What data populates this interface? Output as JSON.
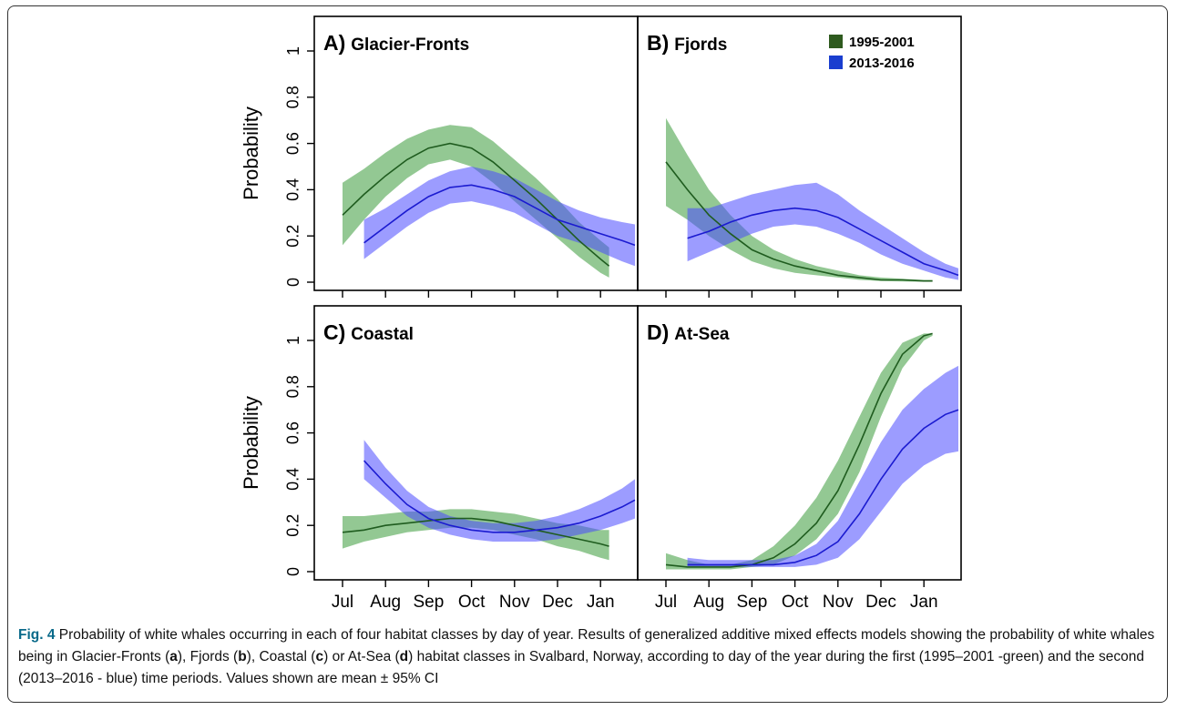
{
  "figure": {
    "caption_label": "Fig. 4",
    "caption_title": " Probability of white whales occurring in each of four habitat classes by day of year. Results of generalized additive mixed effects models showing the probability of white whales being in Glacier-Fronts (",
    "caption_parts": [
      {
        "text": "a",
        "bold": true
      },
      {
        "text": "), Fjords (",
        "bold": false
      },
      {
        "text": "b",
        "bold": true
      },
      {
        "text": "), Coastal (",
        "bold": false
      },
      {
        "text": "c",
        "bold": true
      },
      {
        "text": ") or At-Sea (",
        "bold": false
      },
      {
        "text": "d",
        "bold": true
      },
      {
        "text": ") habitat classes in Svalbard, Norway, according to day of the year during the first (1995–2001 -green) and the second (2013–2016 - blue) time periods. Values shown are mean ± 95% CI",
        "bold": false
      }
    ]
  },
  "colors": {
    "green_line": "#1f5c1f",
    "green_band": "#3a9a3a",
    "blue_line": "#1b1bd0",
    "blue_band": "#4a4aff",
    "legend_green": "#2e5a1e",
    "legend_blue": "#1a3ecf"
  },
  "chart_data": [
    {
      "type": "line",
      "panel": "A) Glacier-Fronts",
      "title": "A) Glacier-Fronts",
      "ylabel": "Probability",
      "ylim": [
        0,
        1
      ],
      "yticks": [
        "0",
        "0.2",
        "0.4",
        "0.6",
        "0.8",
        "1"
      ],
      "x_ticks": [
        "Jul",
        "Aug",
        "Sep",
        "Oct",
        "Nov",
        "Dec",
        "Jan"
      ],
      "x_tick_labels_shown": false,
      "series": [
        {
          "name": "1995-2001",
          "x": [
            0,
            0.5,
            1,
            1.5,
            2,
            2.5,
            3,
            3.5,
            4,
            4.5,
            5,
            5.5,
            6,
            6.2
          ],
          "mean": [
            0.29,
            0.38,
            0.46,
            0.53,
            0.58,
            0.6,
            0.58,
            0.52,
            0.44,
            0.36,
            0.27,
            0.18,
            0.1,
            0.07
          ],
          "lower": [
            0.16,
            0.27,
            0.37,
            0.45,
            0.51,
            0.53,
            0.5,
            0.43,
            0.35,
            0.27,
            0.19,
            0.11,
            0.04,
            0.02
          ],
          "upper": [
            0.43,
            0.49,
            0.56,
            0.62,
            0.66,
            0.68,
            0.67,
            0.61,
            0.53,
            0.45,
            0.36,
            0.26,
            0.18,
            0.15
          ]
        },
        {
          "name": "2013-2016",
          "x": [
            0.5,
            1,
            1.5,
            2,
            2.5,
            3,
            3.5,
            4,
            4.5,
            5,
            5.5,
            6,
            6.5,
            6.8
          ],
          "mean": [
            0.17,
            0.24,
            0.31,
            0.37,
            0.41,
            0.42,
            0.4,
            0.37,
            0.32,
            0.27,
            0.24,
            0.21,
            0.18,
            0.16
          ],
          "lower": [
            0.1,
            0.17,
            0.24,
            0.3,
            0.34,
            0.35,
            0.33,
            0.3,
            0.25,
            0.2,
            0.17,
            0.13,
            0.09,
            0.07
          ],
          "upper": [
            0.27,
            0.32,
            0.38,
            0.44,
            0.48,
            0.5,
            0.48,
            0.45,
            0.4,
            0.35,
            0.31,
            0.28,
            0.26,
            0.25
          ]
        }
      ]
    },
    {
      "type": "line",
      "panel": "B) Fjords",
      "title": "B) Fjords",
      "ylim": [
        0,
        1
      ],
      "x_ticks": [
        "Jul",
        "Aug",
        "Sep",
        "Oct",
        "Nov",
        "Dec",
        "Jan"
      ],
      "x_tick_labels_shown": false,
      "legend": [
        "1995-2001",
        "2013-2016"
      ],
      "legend_position": "top-right",
      "series": [
        {
          "name": "1995-2001",
          "x": [
            0,
            0.5,
            1,
            1.5,
            2,
            2.5,
            3,
            3.5,
            4,
            4.5,
            5,
            5.5,
            6,
            6.2
          ],
          "mean": [
            0.52,
            0.4,
            0.29,
            0.21,
            0.14,
            0.1,
            0.07,
            0.05,
            0.03,
            0.02,
            0.01,
            0.01,
            0.005,
            0.005
          ],
          "lower": [
            0.33,
            0.27,
            0.2,
            0.14,
            0.09,
            0.06,
            0.04,
            0.03,
            0.02,
            0.01,
            0.005,
            0.003,
            0.002,
            0.002
          ],
          "upper": [
            0.71,
            0.55,
            0.4,
            0.29,
            0.2,
            0.14,
            0.1,
            0.07,
            0.05,
            0.03,
            0.02,
            0.015,
            0.01,
            0.01
          ]
        },
        {
          "name": "2013-2016",
          "x": [
            0.5,
            1,
            1.5,
            2,
            2.5,
            3,
            3.5,
            4,
            4.5,
            5,
            5.5,
            6,
            6.5,
            6.8
          ],
          "mean": [
            0.19,
            0.22,
            0.26,
            0.29,
            0.31,
            0.32,
            0.31,
            0.28,
            0.23,
            0.18,
            0.13,
            0.08,
            0.05,
            0.03
          ],
          "lower": [
            0.09,
            0.13,
            0.17,
            0.21,
            0.24,
            0.25,
            0.24,
            0.21,
            0.17,
            0.12,
            0.08,
            0.05,
            0.02,
            0.01
          ],
          "upper": [
            0.32,
            0.32,
            0.35,
            0.38,
            0.4,
            0.42,
            0.43,
            0.38,
            0.31,
            0.25,
            0.19,
            0.13,
            0.08,
            0.06
          ]
        }
      ]
    },
    {
      "type": "line",
      "panel": "C) Coastal",
      "title": "C) Coastal",
      "ylabel": "Probability",
      "ylim": [
        0,
        1
      ],
      "yticks": [
        "0",
        "0.2",
        "0.4",
        "0.6",
        "0.8",
        "1"
      ],
      "x_ticks": [
        "Jul",
        "Aug",
        "Sep",
        "Oct",
        "Nov",
        "Dec",
        "Jan"
      ],
      "x_tick_labels_shown": true,
      "series": [
        {
          "name": "1995-2001",
          "x": [
            0,
            0.5,
            1,
            1.5,
            2,
            2.5,
            3,
            3.5,
            4,
            4.5,
            5,
            5.5,
            6,
            6.2
          ],
          "mean": [
            0.17,
            0.18,
            0.2,
            0.21,
            0.22,
            0.23,
            0.23,
            0.22,
            0.2,
            0.18,
            0.16,
            0.14,
            0.12,
            0.11
          ],
          "lower": [
            0.1,
            0.13,
            0.15,
            0.17,
            0.18,
            0.19,
            0.19,
            0.18,
            0.16,
            0.14,
            0.11,
            0.09,
            0.06,
            0.05
          ],
          "upper": [
            0.24,
            0.24,
            0.25,
            0.26,
            0.26,
            0.27,
            0.27,
            0.26,
            0.25,
            0.23,
            0.21,
            0.2,
            0.18,
            0.18
          ]
        },
        {
          "name": "2013-2016",
          "x": [
            0.5,
            1,
            1.5,
            2,
            2.5,
            3,
            3.5,
            4,
            4.5,
            5,
            5.5,
            6,
            6.5,
            6.8
          ],
          "mean": [
            0.48,
            0.38,
            0.29,
            0.23,
            0.2,
            0.18,
            0.17,
            0.17,
            0.18,
            0.19,
            0.21,
            0.24,
            0.28,
            0.31
          ],
          "lower": [
            0.4,
            0.32,
            0.24,
            0.19,
            0.16,
            0.14,
            0.13,
            0.13,
            0.13,
            0.14,
            0.16,
            0.18,
            0.21,
            0.23
          ],
          "upper": [
            0.57,
            0.45,
            0.35,
            0.28,
            0.24,
            0.22,
            0.21,
            0.21,
            0.22,
            0.24,
            0.27,
            0.31,
            0.36,
            0.4
          ]
        }
      ]
    },
    {
      "type": "line",
      "panel": "D) At-Sea",
      "title": "D) At-Sea",
      "ylim": [
        0,
        1
      ],
      "x_ticks": [
        "Jul",
        "Aug",
        "Sep",
        "Oct",
        "Nov",
        "Dec",
        "Jan"
      ],
      "x_tick_labels_shown": true,
      "series": [
        {
          "name": "1995-2001",
          "x": [
            0,
            0.5,
            1,
            1.5,
            2,
            2.5,
            3,
            3.5,
            4,
            4.5,
            5,
            5.5,
            6,
            6.2
          ],
          "mean": [
            0.03,
            0.02,
            0.02,
            0.02,
            0.03,
            0.06,
            0.12,
            0.21,
            0.35,
            0.55,
            0.77,
            0.94,
            1.02,
            1.03
          ],
          "lower": [
            0.01,
            0.01,
            0.01,
            0.01,
            0.02,
            0.03,
            0.07,
            0.14,
            0.25,
            0.43,
            0.67,
            0.88,
            1.0,
            1.02
          ],
          "upper": [
            0.08,
            0.05,
            0.03,
            0.03,
            0.05,
            0.11,
            0.2,
            0.32,
            0.48,
            0.67,
            0.86,
            0.99,
            1.03,
            1.03
          ]
        },
        {
          "name": "2013-2016",
          "x": [
            0.5,
            1,
            1.5,
            2,
            2.5,
            3,
            3.5,
            4,
            4.5,
            5,
            5.5,
            6,
            6.5,
            6.8
          ],
          "mean": [
            0.03,
            0.03,
            0.03,
            0.03,
            0.03,
            0.04,
            0.07,
            0.13,
            0.25,
            0.4,
            0.53,
            0.62,
            0.68,
            0.7
          ],
          "lower": [
            0.02,
            0.02,
            0.02,
            0.02,
            0.02,
            0.02,
            0.03,
            0.06,
            0.14,
            0.26,
            0.38,
            0.46,
            0.51,
            0.52
          ],
          "upper": [
            0.06,
            0.05,
            0.05,
            0.05,
            0.05,
            0.07,
            0.12,
            0.22,
            0.39,
            0.56,
            0.7,
            0.79,
            0.86,
            0.89
          ]
        }
      ]
    }
  ]
}
